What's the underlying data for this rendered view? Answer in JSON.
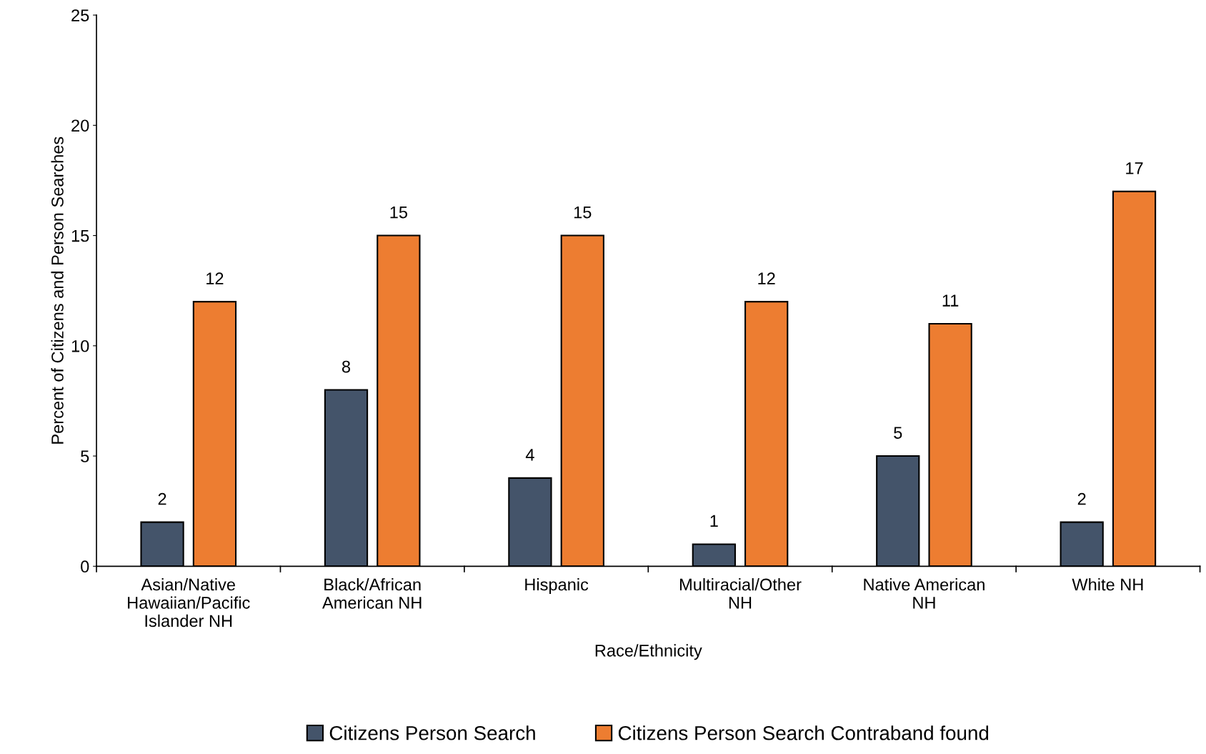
{
  "chart_data": {
    "type": "bar",
    "xlabel": "Race/Ethnicity",
    "ylabel": "Percent of Citizens and Person Searches",
    "categories": [
      "Asian/Native\nHawaiian/Pacific\nIslander NH",
      "Black/African\nAmerican NH",
      "Hispanic",
      "Multiracial/Other\nNH",
      "Native American\nNH",
      "White NH"
    ],
    "series": [
      {
        "name": "Citizens Person Search",
        "color": "#44546a",
        "values": [
          2,
          8,
          4,
          1,
          5,
          2
        ]
      },
      {
        "name": "Citizens Person Search Contraband found",
        "color": "#ed7d31",
        "values": [
          12,
          15,
          15,
          12,
          11,
          17
        ]
      }
    ],
    "ylim": [
      0,
      25
    ],
    "yticks": [
      0,
      5,
      10,
      15,
      20,
      25
    ],
    "grid": false,
    "legend": "bottom",
    "data_labels": true
  }
}
